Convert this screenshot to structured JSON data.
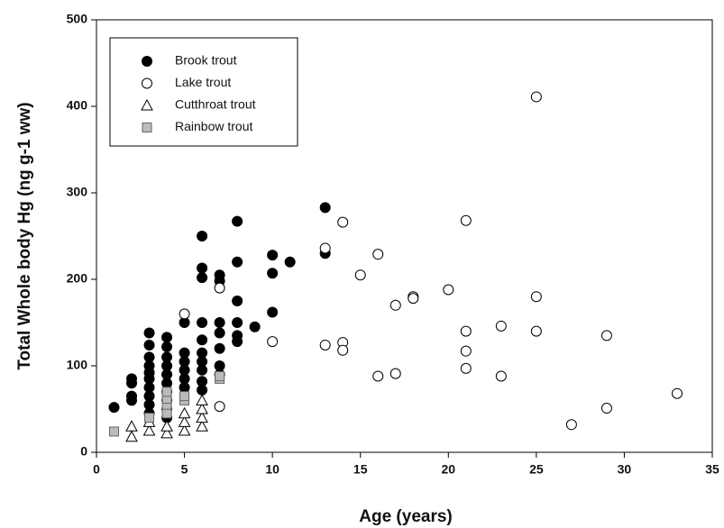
{
  "chart_data": {
    "type": "scatter",
    "xlabel": "Age (years)",
    "ylabel": "Total Whole body Hg (ng g-1 ww)",
    "xlim": [
      0,
      35
    ],
    "xticks": [
      0,
      5,
      10,
      15,
      20,
      25,
      30,
      35
    ],
    "ylim": [
      0,
      500
    ],
    "yticks": [
      0,
      100,
      200,
      300,
      400,
      500
    ],
    "legend": "upper left",
    "series": [
      {
        "name": "Brook trout",
        "marker": "circle",
        "color": "#000000",
        "x": [
          1,
          2,
          2,
          2,
          2,
          3,
          3,
          3,
          3,
          3,
          3,
          3,
          3,
          3,
          3,
          4,
          4,
          4,
          4,
          4,
          4,
          4,
          4,
          4,
          4,
          5,
          5,
          5,
          5,
          5,
          5,
          6,
          6,
          6,
          6,
          6,
          6,
          6,
          6,
          6,
          6,
          7,
          7,
          7,
          7,
          7,
          7,
          7,
          8,
          8,
          8,
          8,
          8,
          8,
          9,
          10,
          10,
          10,
          11,
          13,
          13
        ],
        "values": [
          52,
          60,
          65,
          80,
          85,
          138,
          124,
          110,
          100,
          92,
          85,
          75,
          65,
          55,
          45,
          133,
          122,
          110,
          100,
          90,
          80,
          70,
          60,
          50,
          40,
          150,
          115,
          105,
          95,
          85,
          75,
          250,
          213,
          202,
          150,
          130,
          115,
          105,
          95,
          82,
          72,
          205,
          198,
          150,
          138,
          120,
          100,
          90,
          267,
          220,
          175,
          150,
          135,
          128,
          145,
          228,
          207,
          162,
          220,
          283,
          230
        ]
      },
      {
        "name": "Lake trout",
        "marker": "circle",
        "color": "#ffffff",
        "x": [
          5,
          7,
          7,
          10,
          13,
          13,
          14,
          14,
          14,
          15,
          16,
          16,
          17,
          17,
          18,
          18,
          20,
          21,
          21,
          21,
          21,
          23,
          23,
          25,
          25,
          25,
          27,
          29,
          29,
          33
        ],
        "values": [
          160,
          190,
          53,
          128,
          236,
          124,
          266,
          127,
          118,
          205,
          229,
          88,
          170,
          91,
          180,
          178,
          188,
          268,
          140,
          117,
          97,
          146,
          88,
          411,
          180,
          140,
          32,
          135,
          51,
          68
        ]
      },
      {
        "name": "Cutthroat trout",
        "marker": "triangle",
        "color": "#ffffff",
        "x": [
          2,
          2,
          3,
          3,
          4,
          4,
          5,
          5,
          5,
          6,
          6,
          6,
          6
        ],
        "values": [
          18,
          30,
          25,
          35,
          22,
          30,
          25,
          35,
          45,
          30,
          40,
          50,
          60
        ]
      },
      {
        "name": "Rainbow trout",
        "marker": "square",
        "color": "#bbbbbb",
        "x": [
          1,
          3,
          4,
          4,
          4,
          4,
          5,
          5,
          7,
          7
        ],
        "values": [
          24,
          40,
          45,
          55,
          62,
          70,
          60,
          65,
          85,
          88
        ]
      }
    ]
  }
}
